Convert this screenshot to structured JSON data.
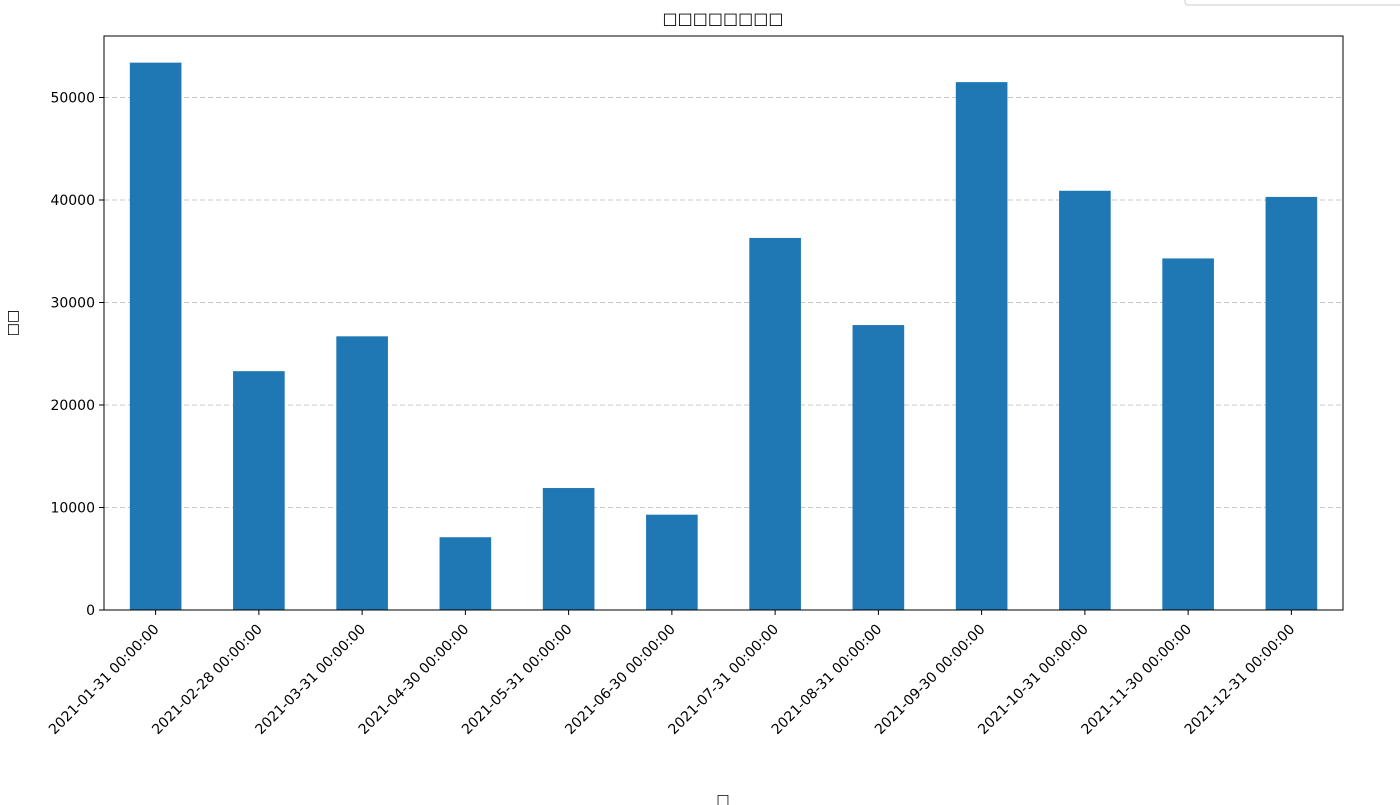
{
  "chart_data": {
    "type": "bar",
    "title": "□□□□□□□□",
    "x_label": "□",
    "y_label": "□□",
    "categories": [
      "2021-01-31 00:00:00",
      "2021-02-28 00:00:00",
      "2021-03-31 00:00:00",
      "2021-04-30 00:00:00",
      "2021-05-31 00:00:00",
      "2021-06-30 00:00:00",
      "2021-07-31 00:00:00",
      "2021-08-31 00:00:00",
      "2021-09-30 00:00:00",
      "2021-10-31 00:00:00",
      "2021-11-30 00:00:00",
      "2021-12-31 00:00:00"
    ],
    "values": [
      53400,
      23300,
      26700,
      7100,
      11900,
      9300,
      36300,
      27800,
      51500,
      40900,
      34300,
      40300
    ],
    "color": "#1f77b4",
    "ylim": [
      0,
      56000
    ],
    "yticks": [
      0,
      10000,
      20000,
      30000,
      40000,
      50000
    ],
    "grid": true
  }
}
